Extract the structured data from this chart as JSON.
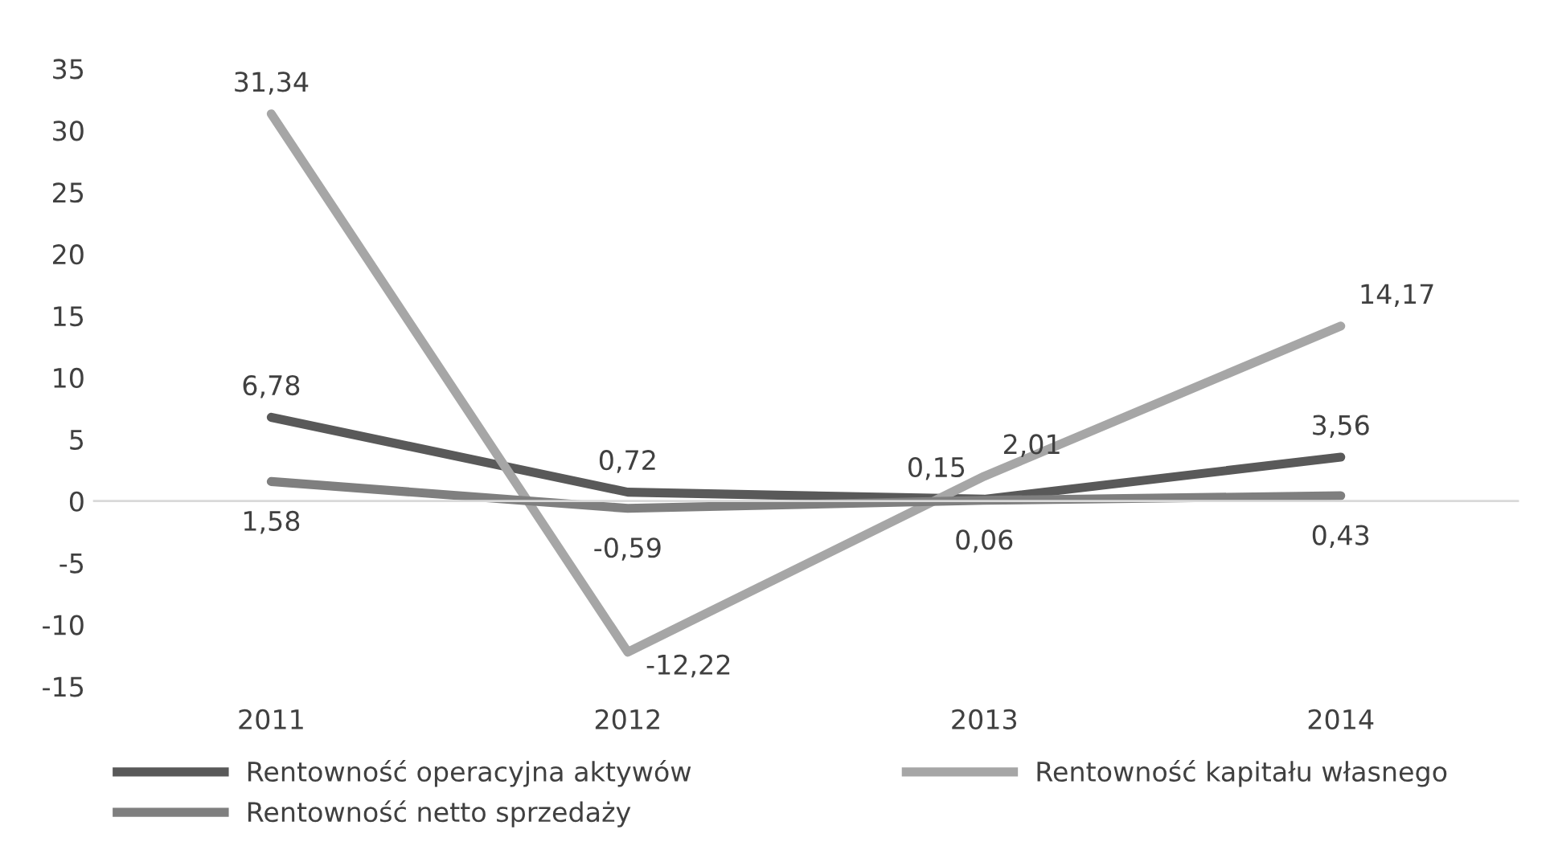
{
  "chart_data": {
    "type": "line",
    "categories": [
      "2011",
      "2012",
      "2013",
      "2014"
    ],
    "series": [
      {
        "name": "Rentowność operacyjna aktywów",
        "color": "#595959",
        "values": [
          6.78,
          0.72,
          0.15,
          3.56
        ],
        "value_labels": [
          "6,78",
          "0,72",
          "0,15",
          "3,56"
        ]
      },
      {
        "name": "Rentowność kapitału własnego",
        "color": "#a6a6a6",
        "values": [
          31.34,
          -12.22,
          2.01,
          14.17
        ],
        "value_labels": [
          "31,34",
          "-12,22",
          "2,01",
          "14,17"
        ]
      },
      {
        "name": "Rentowność netto sprzedaży",
        "color": "#7f7f7f",
        "values": [
          1.58,
          -0.59,
          0.06,
          0.43
        ],
        "value_labels": [
          "1,58",
          "-0,59",
          "0,06",
          "0,43"
        ]
      }
    ],
    "ref_lines": [
      {
        "axis": "y",
        "value": 0,
        "color": "#d9d9d9"
      }
    ],
    "ylim": [
      -15,
      35
    ],
    "yticks": [
      -15,
      -10,
      -5,
      0,
      5,
      10,
      15,
      20,
      25,
      30,
      35
    ],
    "grid": false,
    "legend": "bottom",
    "marker": "none",
    "line_style": "solid"
  }
}
